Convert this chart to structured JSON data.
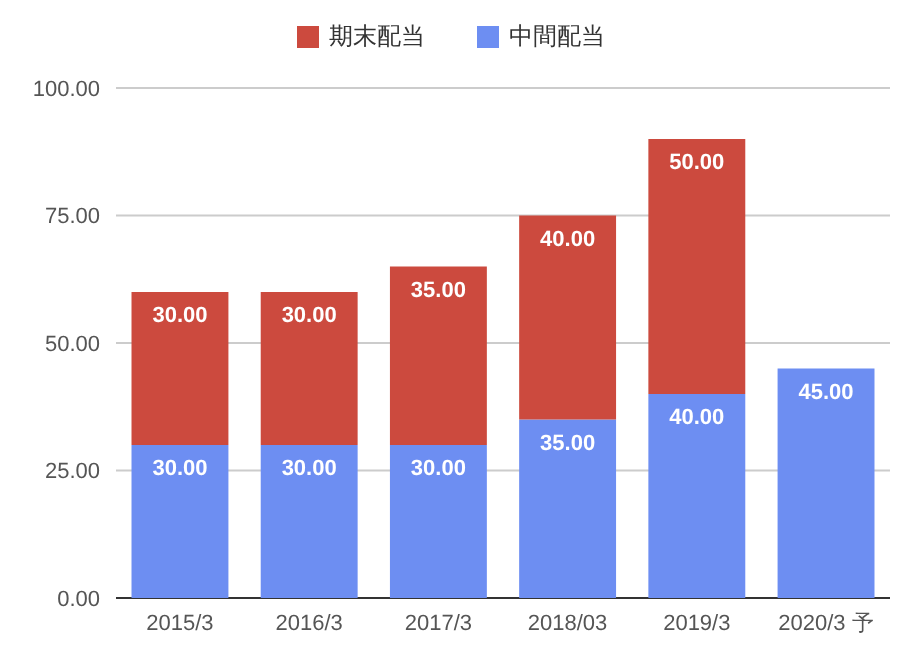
{
  "chart_data": {
    "type": "bar",
    "stacked": true,
    "legend": "top",
    "grid": "y",
    "categories": [
      "2015/3",
      "2016/3",
      "2017/3",
      "2018/03",
      "2019/3",
      "2020/3 予"
    ],
    "series": [
      {
        "name": "中間配当",
        "color": "#6d8ef2",
        "values": [
          30,
          30,
          30,
          35,
          40,
          45
        ],
        "value_labels": [
          "30.00",
          "30.00",
          "30.00",
          "35.00",
          "40.00",
          "45.00"
        ]
      },
      {
        "name": "期末配当",
        "color": "#cc4a3e",
        "values": [
          30,
          30,
          35,
          40,
          50,
          null
        ],
        "value_labels": [
          "30.00",
          "30.00",
          "35.00",
          "40.00",
          "50.00",
          null
        ]
      }
    ],
    "ylim": [
      0,
      100
    ],
    "yticks": [
      {
        "value": 0,
        "label": "0.00"
      },
      {
        "value": 25,
        "label": "25.00"
      },
      {
        "value": 50,
        "label": "50.00"
      },
      {
        "value": 75,
        "label": "75.00"
      },
      {
        "value": 100,
        "label": "100.00"
      }
    ]
  }
}
